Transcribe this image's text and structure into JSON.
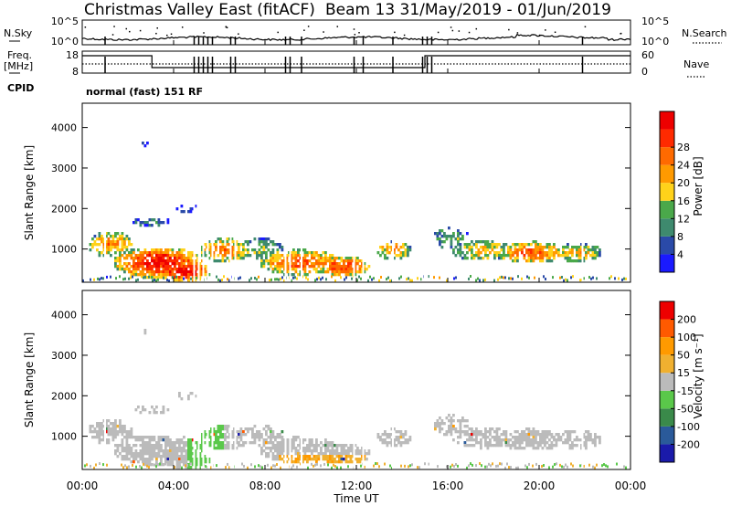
{
  "header": {
    "title": "Christmas Valley East (fitACF)",
    "beam_info": "Beam 13  31/May/2019 - 01/Jun/2019"
  },
  "summary_panels": {
    "nsky_label": "N.Sky",
    "nsearch_label": "N.Search",
    "nsky_ticks": [
      "10^5",
      "10^0"
    ],
    "nsearch_ticks": [
      "10^5",
      "10^0"
    ],
    "freq_label_1": "Freq.",
    "freq_label_2": "[MHz]",
    "freq_ticks": [
      "18",
      "8"
    ],
    "nave_label": "Nave",
    "nave_ticks": [
      "60",
      "0"
    ],
    "cpid_label": "CPID",
    "cpid_text": "normal (fast) 151 RF"
  },
  "chart_data": [
    {
      "type": "heatmap",
      "name": "power",
      "ylabel": "Slant Range [km]",
      "ylim": [
        180,
        4600
      ],
      "yticks": [
        "1000",
        "2000",
        "3000",
        "4000"
      ],
      "colorbar_label": "Power [dB]",
      "colorbar_ticks": [
        "4",
        "8",
        "12",
        "16",
        "20",
        "24",
        "28"
      ],
      "colors": [
        "#1a1aff",
        "#2a4aa8",
        "#3e8a6e",
        "#4aa84a",
        "#ffd21a",
        "#ff9a00",
        "#ff6a00",
        "#ff2a00",
        "#ee0000"
      ]
    },
    {
      "type": "heatmap",
      "name": "velocity",
      "ylabel": "Slant Range [km]",
      "ylim": [
        180,
        4600
      ],
      "yticks": [
        "1000",
        "2000",
        "3000",
        "4000"
      ],
      "colorbar_label": "Velocity [m s⁻¹]",
      "colorbar_ticks": [
        "200",
        "100",
        "50",
        "15",
        "-15",
        "-50",
        "-100",
        "-200"
      ],
      "colors": [
        "#1a1aaa",
        "#2a5a9a",
        "#3a8a4a",
        "#5ac84a",
        "#bbbbbb",
        "#f0b030",
        "#ff9a00",
        "#ff5a00",
        "#ee0000"
      ]
    }
  ],
  "time_axis": {
    "xlabel": "Time UT",
    "ticks": [
      "00:00",
      "04:00",
      "08:00",
      "12:00",
      "16:00",
      "20:00",
      "00:00"
    ]
  }
}
